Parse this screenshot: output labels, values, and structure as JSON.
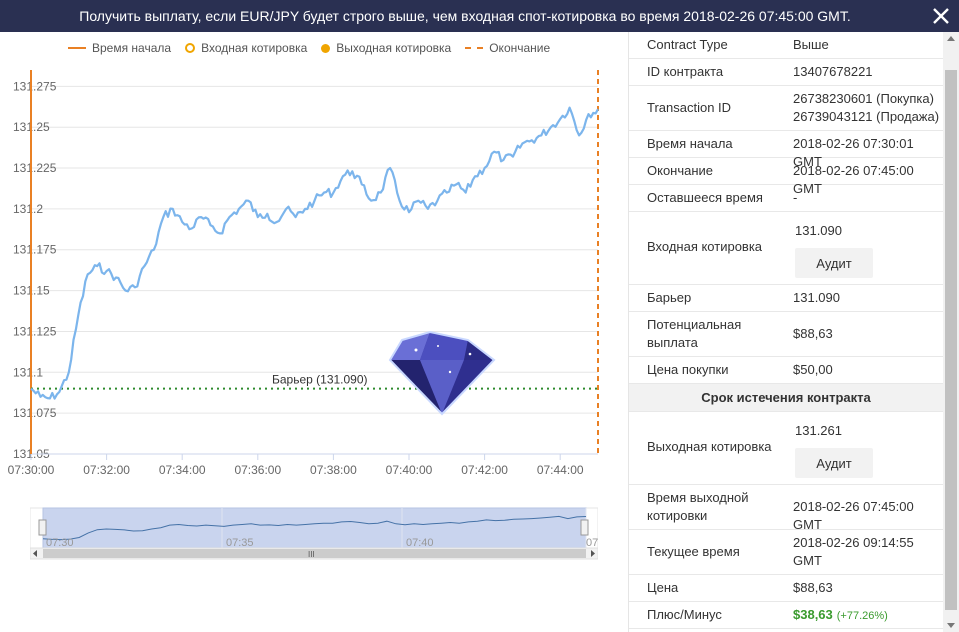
{
  "header": {
    "title": "Получить выплату, если EUR/JPY будет строго выше, чем входная спот-котировка во время 2018-02-26 07:45:00 GMT.",
    "close_icon": "close-icon"
  },
  "legend": {
    "start_time": "Время начала",
    "entry_spot": "Входная котировка",
    "exit_spot": "Выходная котировка",
    "end": "Окончание"
  },
  "barrier_label": "Барьер (131.090)",
  "navigator": {
    "labels": [
      "07:30",
      "07:35",
      "07:40",
      "07:..."
    ],
    "scroll_grip": "III"
  },
  "colors": {
    "accent": "#e98024",
    "line": "#7cb5ec",
    "barrier": "#2e8b2e",
    "header": "#2a3052",
    "profit": "#3a9b2e"
  },
  "chart_data": {
    "type": "line",
    "ylim": [
      131.05,
      131.285
    ],
    "y_ticks": [
      "131.275",
      "131.25",
      "131.225",
      "131.2",
      "131.175",
      "131.15",
      "131.125",
      "131.1",
      "131.075",
      "131.05"
    ],
    "x_ticks": [
      "07:30:00",
      "07:32:00",
      "07:34:00",
      "07:36:00",
      "07:38:00",
      "07:40:00",
      "07:42:00",
      "07:44:00"
    ],
    "barrier": 131.09,
    "series": [
      {
        "x": [
          "07:30:00",
          "07:30:15",
          "07:30:30",
          "07:30:45",
          "07:31:00",
          "07:31:15",
          "07:31:30",
          "07:31:45",
          "07:32:00",
          "07:32:15",
          "07:32:30",
          "07:32:45",
          "07:33:00",
          "07:33:15",
          "07:33:30",
          "07:33:45",
          "07:34:00",
          "07:34:15",
          "07:34:30",
          "07:34:45",
          "07:35:00",
          "07:35:15",
          "07:35:30",
          "07:35:45",
          "07:36:00",
          "07:36:15",
          "07:36:30",
          "07:36:45",
          "07:37:00",
          "07:37:15",
          "07:37:30",
          "07:37:45",
          "07:38:00",
          "07:38:15",
          "07:38:30",
          "07:38:45",
          "07:39:00",
          "07:39:15",
          "07:39:30",
          "07:39:45",
          "07:40:00",
          "07:40:15",
          "07:40:30",
          "07:40:45",
          "07:41:00",
          "07:41:15",
          "07:41:30",
          "07:41:45",
          "07:42:00",
          "07:42:15",
          "07:42:30",
          "07:42:45",
          "07:43:00",
          "07:43:15",
          "07:43:30",
          "07:43:45",
          "07:44:00",
          "07:44:15",
          "07:44:30",
          "07:44:45",
          "07:45:00"
        ],
        "values": [
          131.09,
          131.085,
          131.084,
          131.088,
          131.1,
          131.135,
          131.16,
          131.165,
          131.162,
          131.158,
          131.15,
          131.152,
          131.165,
          131.175,
          131.195,
          131.2,
          131.192,
          131.188,
          131.195,
          131.19,
          131.185,
          131.195,
          131.2,
          131.205,
          131.195,
          131.197,
          131.192,
          131.2,
          131.195,
          131.2,
          131.205,
          131.21,
          131.21,
          131.22,
          131.223,
          131.215,
          131.205,
          131.21,
          131.225,
          131.205,
          131.198,
          131.205,
          131.2,
          131.205,
          131.21,
          131.215,
          131.21,
          131.22,
          131.225,
          131.235,
          131.23,
          131.232,
          131.24,
          131.242,
          131.245,
          131.25,
          131.255,
          131.262,
          131.245,
          131.258,
          131.261
        ]
      }
    ]
  },
  "contract": {
    "rows": [
      {
        "label": "Contract Type",
        "value": "Выше"
      },
      {
        "label": "ID контракта",
        "value": "13407678221"
      },
      {
        "label": "Transaction ID",
        "value1": "26738230601 (Покупка)",
        "value2": "26739043121 (Продажа)"
      },
      {
        "label": "Время начала",
        "value": "2018-02-26 07:30:01 GMT"
      },
      {
        "label": "Окончание",
        "value": "2018-02-26 07:45:00 GMT"
      },
      {
        "label": "Оставшееся время",
        "value": "-"
      },
      {
        "label": "Входная котировка",
        "value": "131.090",
        "button": "Аудит"
      },
      {
        "label": "Барьер",
        "value": "131.090"
      },
      {
        "label": "Потенциальная выплата",
        "value": "$88,63"
      },
      {
        "label": "Цена покупки",
        "value": "$50,00"
      }
    ],
    "expiry_section": "Срок истечения контракта",
    "expiry_rows": [
      {
        "label": "Выходная котировка",
        "value": "131.261",
        "button": "Аудит"
      },
      {
        "label": "Время выходной котировки",
        "value": "2018-02-26 07:45:00 GMT"
      },
      {
        "label": "Текущее время",
        "value": "2018-02-26 09:14:55 GMT"
      },
      {
        "label": "Цена",
        "value": "$88,63"
      },
      {
        "label": "Плюс/Минус",
        "value": "$38,63",
        "pct": "(+77.26%)"
      }
    ]
  }
}
